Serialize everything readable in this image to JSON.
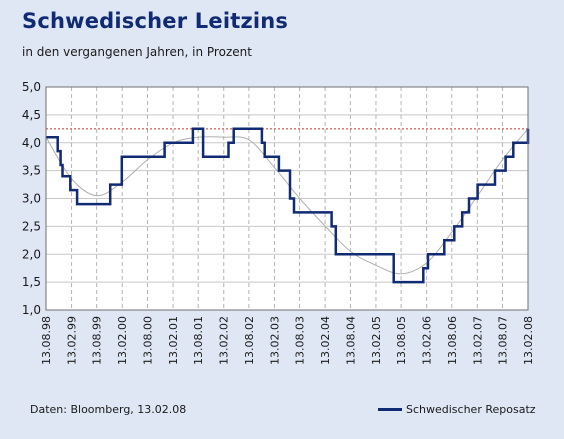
{
  "header": {
    "title": "Schwedischer Leitzins",
    "subtitle": "in den vergangenen Jahren, in Prozent"
  },
  "footer": {
    "source": "Daten: Bloomberg, 13.02.08"
  },
  "colors": {
    "background": "#dfe6f4",
    "plot_background": "#ffffff",
    "series": "#102a73",
    "trend": "#b0b0b0",
    "reference_line": "#c0392b"
  },
  "chart_data": {
    "type": "line",
    "title": "Schwedischer Leitzins",
    "subtitle": "in den vergangenen Jahren, in Prozent",
    "xlabel": "",
    "ylabel": "",
    "x_ticks": [
      "13.08.98",
      "13.02.99",
      "13.08.99",
      "13.02.00",
      "13.08.00",
      "13.02.01",
      "13.08.01",
      "13.02.02",
      "13.08.02",
      "13.02.03",
      "13.08.03",
      "13.02.04",
      "13.08.04",
      "13.02.05",
      "13.08.05",
      "13.02.06",
      "13.08.06",
      "13.02.07",
      "13.08.07",
      "13.02.08"
    ],
    "xlim": [
      "13.08.98",
      "13.02.08"
    ],
    "y_ticks": [
      "1,0",
      "1,5",
      "2,0",
      "2,5",
      "3,0",
      "3,5",
      "4,0",
      "4,5",
      "5,0"
    ],
    "ylim": [
      1.0,
      5.0
    ],
    "grid": true,
    "legend_position": "bottom-right",
    "series": [
      {
        "name": "Schwedischer Reposatz",
        "style": "step",
        "color": "#102a73",
        "points": [
          [
            "1998-08-13",
            4.1
          ],
          [
            "1998-11-05",
            3.85
          ],
          [
            "1998-11-26",
            3.6
          ],
          [
            "1998-12-10",
            3.4
          ],
          [
            "1999-02-04",
            3.15
          ],
          [
            "1999-03-25",
            2.9
          ],
          [
            "1999-11-18",
            3.25
          ],
          [
            "2000-02-10",
            3.75
          ],
          [
            "2000-12-14",
            4.0
          ],
          [
            "2001-07-06",
            4.25
          ],
          [
            "2001-09-17",
            3.75
          ],
          [
            "2002-03-19",
            4.0
          ],
          [
            "2002-04-26",
            4.25
          ],
          [
            "2002-11-15",
            4.0
          ],
          [
            "2002-12-05",
            3.75
          ],
          [
            "2003-03-17",
            3.5
          ],
          [
            "2003-06-05",
            3.0
          ],
          [
            "2003-07-04",
            2.75
          ],
          [
            "2004-03-31",
            2.5
          ],
          [
            "2004-04-30",
            2.0
          ],
          [
            "2005-06-21",
            1.5
          ],
          [
            "2006-01-20",
            1.75
          ],
          [
            "2006-02-23",
            2.0
          ],
          [
            "2006-06-20",
            2.25
          ],
          [
            "2006-08-31",
            2.5
          ],
          [
            "2006-10-27",
            2.75
          ],
          [
            "2006-12-15",
            3.0
          ],
          [
            "2007-02-15",
            3.25
          ],
          [
            "2007-06-20",
            3.5
          ],
          [
            "2007-09-05",
            3.75
          ],
          [
            "2007-10-30",
            4.0
          ],
          [
            "2008-02-13",
            4.25
          ]
        ]
      },
      {
        "name": "",
        "style": "smooth",
        "color": "#b0b0b0",
        "points": [
          [
            "1998-08-13",
            4.1
          ],
          [
            "1999-02-15",
            3.35
          ],
          [
            "1999-08-15",
            3.05
          ],
          [
            "2000-02-15",
            3.3
          ],
          [
            "2000-08-15",
            3.7
          ],
          [
            "2001-02-15",
            4.0
          ],
          [
            "2001-08-15",
            4.1
          ],
          [
            "2002-02-15",
            4.1
          ],
          [
            "2002-08-15",
            4.05
          ],
          [
            "2003-02-15",
            3.55
          ],
          [
            "2003-08-15",
            3.0
          ],
          [
            "2004-02-15",
            2.5
          ],
          [
            "2004-08-15",
            2.05
          ],
          [
            "2005-02-15",
            1.8
          ],
          [
            "2005-08-15",
            1.65
          ],
          [
            "2006-02-15",
            1.85
          ],
          [
            "2006-08-15",
            2.4
          ],
          [
            "2007-02-15",
            3.05
          ],
          [
            "2007-08-15",
            3.7
          ],
          [
            "2008-02-13",
            4.25
          ]
        ]
      }
    ],
    "reference_lines": [
      {
        "y": 4.25,
        "style": "dashed",
        "color": "#c0392b"
      }
    ]
  }
}
